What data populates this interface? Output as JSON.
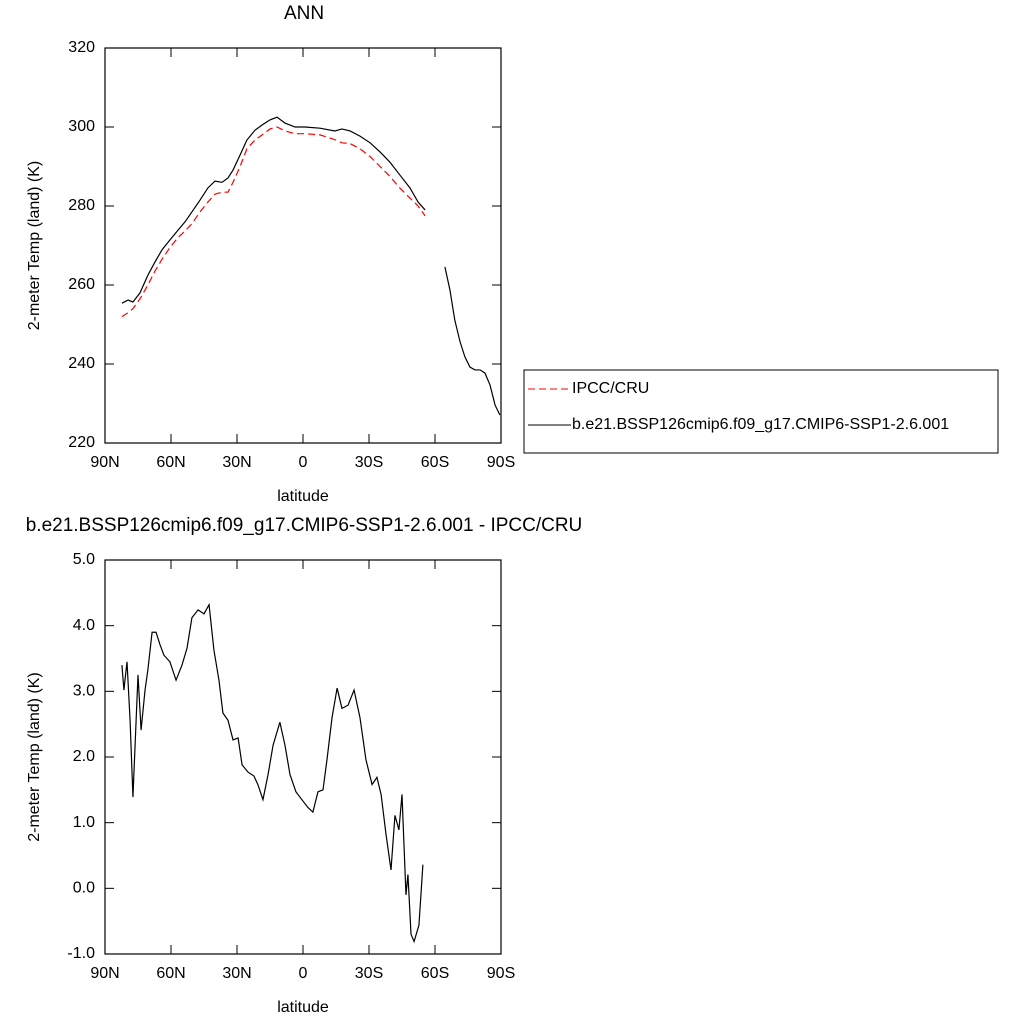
{
  "chart_data": [
    {
      "type": "line",
      "title": "ANN",
      "xlabel": "latitude",
      "ylabel": "2-meter Temp (land) (K)",
      "x": [
        82.3,
        79.5,
        77.3,
        74.1,
        70.5,
        67.3,
        64.1,
        60.5,
        56.8,
        53.6,
        50.5,
        46.8,
        43.2,
        40,
        36.8,
        34.1,
        31.8,
        28.6,
        25.5,
        21.8,
        18.6,
        15,
        11.8,
        8.2,
        3.6,
        -0.9,
        -7.7,
        -14.5,
        -17.7,
        -21.4,
        -25.9,
        -30.5,
        -35,
        -39.5,
        -44.1,
        -48.6,
        -52.3,
        -55.5,
        -60,
        -64.5,
        -66.8,
        -69,
        -71.4,
        -73.6,
        -75.9,
        -78.2,
        -80.5,
        -82.7,
        -85,
        -87.3,
        -89.5
      ],
      "series": [
        {
          "name": "IPCC/CRU",
          "color": "#ff0000",
          "linestyle": "dashed",
          "values": [
            252,
            253,
            254,
            256.5,
            260,
            263.5,
            266.5,
            269.5,
            272,
            273.7,
            275.5,
            278.5,
            281,
            283,
            283.5,
            283.5,
            286,
            290,
            294.5,
            296.7,
            298,
            299.5,
            300,
            299,
            298.3,
            298.3,
            298,
            296.8,
            296,
            295.8,
            294.5,
            292.5,
            290,
            287.5,
            284.5,
            282,
            280,
            277.5,
            null,
            null,
            null,
            null,
            null,
            null,
            null,
            null,
            null,
            null,
            null,
            null,
            null
          ]
        },
        {
          "name": "b.e21.BSSP126cmip6.f09_g17.CMIP6-SSP1-2.6.001",
          "color": "#000000",
          "linestyle": "solid",
          "values": [
            255.4,
            256.2,
            255.7,
            258,
            262.5,
            265.8,
            268.9,
            271.4,
            273.9,
            276,
            278.5,
            281.5,
            284.6,
            286.3,
            286,
            287.1,
            289.1,
            292.9,
            296.7,
            299.2,
            300.5,
            301.8,
            302.5,
            301,
            300,
            300,
            299.7,
            299,
            299.5,
            299,
            297.7,
            296,
            293.7,
            291.1,
            287.8,
            284.6,
            281,
            279,
            null,
            264.6,
            258.7,
            251.1,
            245.6,
            241.8,
            239.2,
            238.5,
            238.5,
            237.7,
            234.7,
            229.6,
            227.1
          ]
        }
      ],
      "xlim": [
        90,
        -90
      ],
      "xticks": [
        {
          "value": 90,
          "label": "90N"
        },
        {
          "value": 60,
          "label": "60N"
        },
        {
          "value": 30,
          "label": "30N"
        },
        0,
        {
          "value": -30,
          "label": "30S"
        },
        {
          "value": -60,
          "label": "60S"
        },
        {
          "value": -90,
          "label": "90S"
        }
      ],
      "ylim": [
        220,
        320
      ],
      "yticks": [
        220,
        240,
        260,
        280,
        300,
        320
      ],
      "legend": "right"
    },
    {
      "type": "line",
      "title": "b.e21.BSSP126cmip6.f09_g17.CMIP6-SSP1-2.6.001 - IPCC/CRU",
      "xlabel": "latitude",
      "ylabel": "2-meter Temp (land) (K)",
      "x": [
        82.3,
        81.4,
        80,
        78.6,
        77.3,
        75,
        73.6,
        71.8,
        70.5,
        68.6,
        66.8,
        65,
        63.2,
        60.5,
        57.7,
        55,
        52.7,
        50.5,
        47.7,
        45,
        42.7,
        40.5,
        38.2,
        36.4,
        34.1,
        31.8,
        29.5,
        27.7,
        25,
        22.3,
        20.5,
        18.2,
        15.9,
        13.6,
        10.5,
        8.2,
        5.9,
        3.2,
        0.5,
        -2.3,
        -4.5,
        -6.8,
        -9.1,
        -10.9,
        -13.2,
        -15.5,
        -17.7,
        -20.5,
        -23.2,
        -25.9,
        -28.6,
        -31.4,
        -33.6,
        -35.5,
        -37.7,
        -40,
        -41.8,
        -43.6,
        -45,
        -46.8,
        -47.7,
        -49.1,
        -50.5,
        -52.7,
        -54.5
      ],
      "series": [
        {
          "color": "#000000",
          "linestyle": "solid",
          "values": [
            3.4,
            3.02,
            3.45,
            2.56,
            1.39,
            3.25,
            2.41,
            3.02,
            3.33,
            3.9,
            3.9,
            3.71,
            3.55,
            3.45,
            3.17,
            3.4,
            3.66,
            4.12,
            4.24,
            4.18,
            4.32,
            3.63,
            3.17,
            2.67,
            2.56,
            2.26,
            2.29,
            1.88,
            1.77,
            1.71,
            1.58,
            1.35,
            1.73,
            2.18,
            2.53,
            2.18,
            1.73,
            1.47,
            1.35,
            1.23,
            1.16,
            1.47,
            1.5,
            1.96,
            2.6,
            3.05,
            2.74,
            2.79,
            3.02,
            2.6,
            1.96,
            1.58,
            1.69,
            1.43,
            0.83,
            0.28,
            1.11,
            0.89,
            1.43,
            -0.1,
            0.21,
            -0.7,
            -0.81,
            -0.56,
            0.36
          ]
        }
      ],
      "xlim": [
        90,
        -90
      ],
      "xticks": [
        {
          "value": 90,
          "label": "90N"
        },
        {
          "value": 60,
          "label": "60N"
        },
        {
          "value": 30,
          "label": "30N"
        },
        0,
        {
          "value": -30,
          "label": "30S"
        },
        {
          "value": -60,
          "label": "60S"
        },
        {
          "value": -90,
          "label": "90S"
        }
      ],
      "ylim": [
        -1,
        5
      ],
      "yticks": [
        {
          "value": -1,
          "label": "-1.0"
        },
        {
          "value": 0,
          "label": "0.0"
        },
        {
          "value": 1,
          "label": "1.0"
        },
        {
          "value": 2,
          "label": "2.0"
        },
        {
          "value": 3,
          "label": "3.0"
        },
        {
          "value": 4,
          "label": "4.0"
        },
        {
          "value": 5,
          "label": "5.0"
        }
      ]
    }
  ]
}
